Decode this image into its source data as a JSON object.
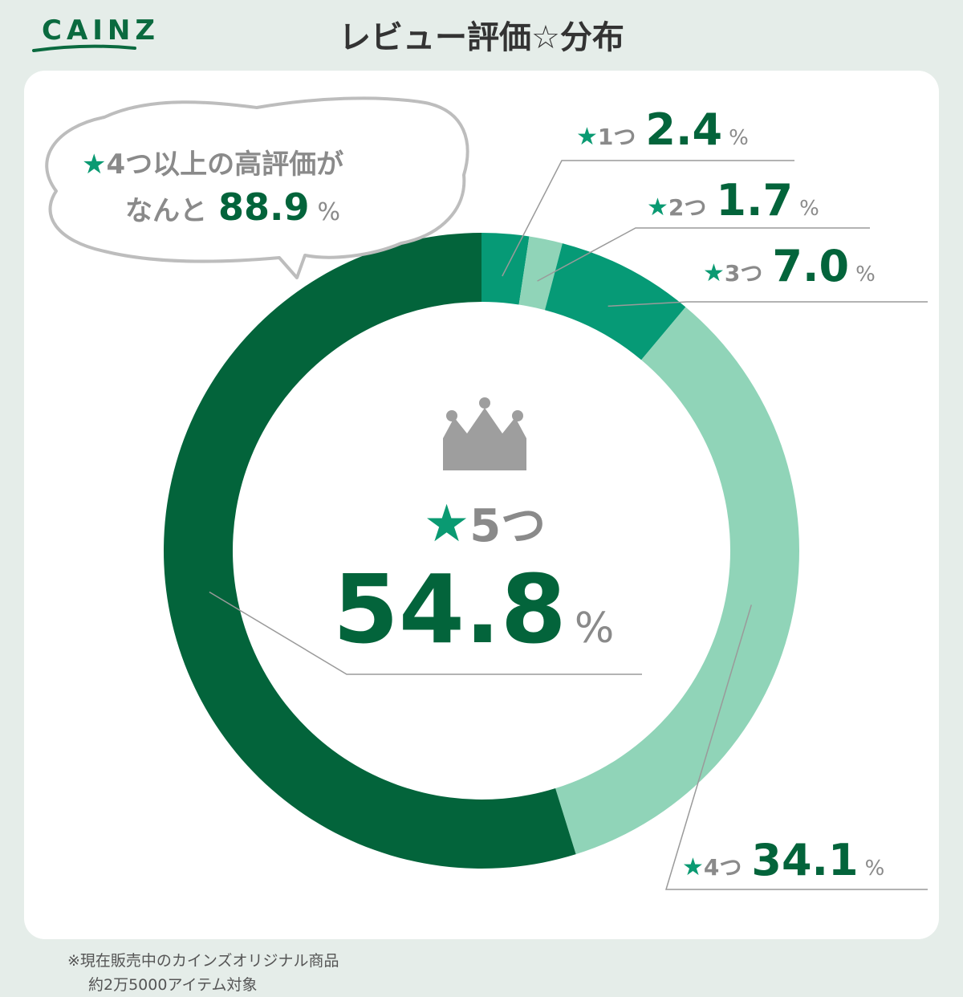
{
  "brand": {
    "logo_text": "CAINZ",
    "brand_color": "#0a6a3f"
  },
  "page": {
    "title": "レビュー評価☆分布"
  },
  "callout": {
    "star": "★",
    "line1": "4つ以上の高評価が",
    "line2_prefix": "なんと",
    "value": "88.9",
    "unit": "%"
  },
  "center": {
    "icon": "crown-icon",
    "star": "★",
    "label": "5つ",
    "value": "54.8",
    "unit": "%"
  },
  "footnote": {
    "line1": "※現在販売中のカインズオリジナル商品",
    "line2": "約2万5000アイテム対象"
  },
  "colors": {
    "star": "#0a9a72",
    "dark": "#03643b",
    "mid": "#069a76",
    "light": "#90d4b8",
    "gray": "#8a8a8a"
  },
  "chart_data": {
    "type": "donut",
    "title": "レビュー評価☆分布",
    "unit": "%",
    "slices": [
      {
        "label": "★1つ",
        "star_label": "1つ",
        "value": 2.4,
        "value_text": "2.4",
        "color": "#069a76"
      },
      {
        "label": "★2つ",
        "star_label": "2つ",
        "value": 1.7,
        "value_text": "1.7",
        "color": "#90d4b8"
      },
      {
        "label": "★3つ",
        "star_label": "3つ",
        "value": 7.0,
        "value_text": "7.0",
        "color": "#069a76"
      },
      {
        "label": "★4つ",
        "star_label": "4つ",
        "value": 34.1,
        "value_text": "34.1",
        "color": "#90d4b8"
      },
      {
        "label": "★5つ",
        "star_label": "5つ",
        "value": 54.8,
        "value_text": "54.8",
        "color": "#03643b"
      }
    ],
    "highlight": {
      "label": "★4つ以上",
      "value": 88.9
    }
  }
}
